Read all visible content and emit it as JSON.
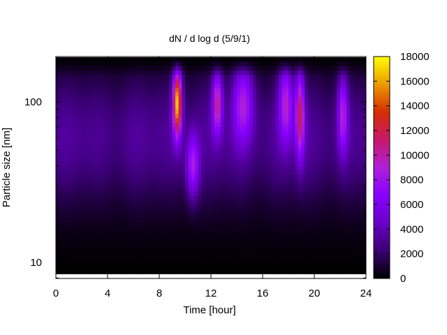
{
  "chart_data": {
    "type": "heatmap",
    "title": "dN / d log d (5/9/1)",
    "xlabel": "Time [hour]",
    "ylabel": "Particle size [nm]",
    "xlim": [
      0,
      24
    ],
    "ylim_log10": [
      0.9,
      2.283
    ],
    "y_scale": "log",
    "x_ticks": [
      0,
      4,
      8,
      12,
      16,
      20,
      24
    ],
    "x_tick_labels": [
      "0",
      "4",
      "8",
      "12",
      "16",
      "20",
      "24"
    ],
    "y_ticks": [
      10,
      100
    ],
    "y_tick_labels": [
      "10",
      "100"
    ],
    "colorbar": {
      "min": 0,
      "max": 18000,
      "ticks": [
        0,
        2000,
        4000,
        6000,
        8000,
        10000,
        12000,
        14000,
        16000,
        18000
      ],
      "tick_labels": [
        "0",
        "2000",
        "4000",
        "6000",
        "8000",
        "10000",
        "12000",
        "14000",
        "16000",
        "18000"
      ],
      "colormap": [
        "#000000",
        "#3a0074",
        "#6a00c8",
        "#8800ff",
        "#b020d8",
        "#c8186a",
        "#d42e00",
        "#ec9a00",
        "#ffff00"
      ]
    },
    "data_range": {
      "x": [
        0,
        24
      ],
      "size_nm_min": 8.5,
      "size_nm_max": 190
    },
    "background_level": 3500,
    "peaks": [
      {
        "time": 9.4,
        "size_nm": 100,
        "value": 14500,
        "time_width": 0.35,
        "log_size_width": 0.22
      },
      {
        "time": 12.5,
        "size_nm": 100,
        "value": 8300,
        "time_width": 0.4,
        "log_size_width": 0.2
      },
      {
        "time": 18.9,
        "size_nm": 85,
        "value": 9000,
        "time_width": 0.35,
        "log_size_width": 0.28
      },
      {
        "time": 17.8,
        "size_nm": 100,
        "value": 7000,
        "time_width": 0.55,
        "log_size_width": 0.25
      },
      {
        "time": 22.2,
        "size_nm": 85,
        "value": 6500,
        "time_width": 0.4,
        "log_size_width": 0.25
      },
      {
        "time": 10.6,
        "size_nm": 40,
        "value": 6500,
        "time_width": 0.5,
        "log_size_width": 0.2
      },
      {
        "time": 14.5,
        "size_nm": 100,
        "value": 6500,
        "time_width": 0.8,
        "log_size_width": 0.25
      }
    ]
  }
}
